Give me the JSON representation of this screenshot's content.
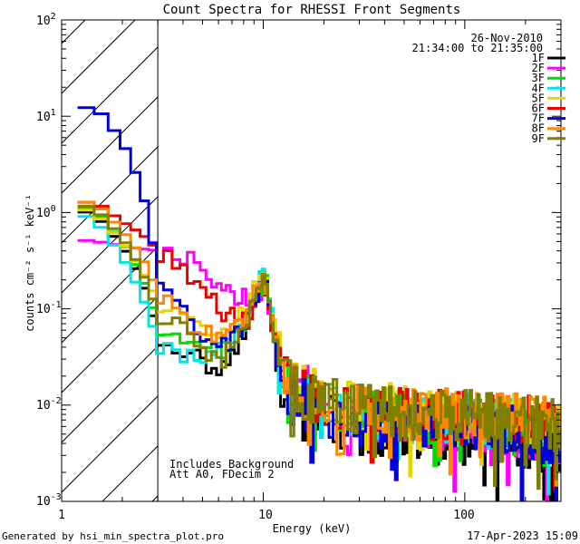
{
  "chart_data": {
    "type": "line",
    "title": "Count Spectra for RHESSI Front Segments",
    "xlabel": "Energy (keV)",
    "ylabel": "counts cm⁻² s⁻¹ keV⁻¹",
    "xscale": "log",
    "yscale": "log",
    "xlim": [
      1,
      300
    ],
    "ylim": [
      0.001,
      100
    ],
    "x_ticks": [
      {
        "value": 1,
        "label": "1"
      },
      {
        "value": 10,
        "label": "10"
      },
      {
        "value": 100,
        "label": "100"
      }
    ],
    "y_ticks": [
      {
        "value": 0.001,
        "base": "10",
        "exp": "-3"
      },
      {
        "value": 0.01,
        "base": "10",
        "exp": "-2"
      },
      {
        "value": 0.1,
        "base": "10",
        "exp": "-1"
      },
      {
        "value": 1,
        "base": "10",
        "exp": "0"
      },
      {
        "value": 10,
        "base": "10",
        "exp": "1"
      },
      {
        "value": 100,
        "base": "10",
        "exp": "2"
      }
    ],
    "hatched_region": {
      "from": 1,
      "to": 3
    },
    "date": "26-Nov-2010",
    "time_range": "21:34:00 to 21:35:00",
    "annotations": [
      "Includes Background",
      "Att A0, FDecim 2"
    ],
    "anchor_energies": [
      1.2,
      1.5,
      2,
      2.5,
      3,
      4,
      5,
      6,
      8,
      9,
      10,
      10.5,
      11,
      12,
      13,
      15,
      20,
      30,
      50,
      100,
      200,
      300
    ],
    "series": [
      {
        "name": "1F",
        "color": "#000000",
        "values": [
          1.1,
          0.9,
          0.45,
          0.2,
          0.055,
          0.04,
          0.03,
          0.022,
          0.05,
          0.12,
          0.2,
          0.18,
          0.07,
          0.02,
          0.01,
          0.008,
          0.009,
          0.005,
          0.005,
          0.005,
          0.004,
          0.0035
        ]
      },
      {
        "name": "2F",
        "color": "#ff00ff",
        "values": [
          0.52,
          0.5,
          0.45,
          0.42,
          0.4,
          0.35,
          0.25,
          0.18,
          0.13,
          0.13,
          0.15,
          0.14,
          0.07,
          0.035,
          0.02,
          0.015,
          0.012,
          0.008,
          0.007,
          0.006,
          0.005,
          0.0045
        ]
      },
      {
        "name": "3F",
        "color": "#00dd00",
        "values": [
          1.2,
          1.0,
          0.5,
          0.22,
          0.07,
          0.05,
          0.04,
          0.035,
          0.06,
          0.12,
          0.2,
          0.17,
          0.08,
          0.025,
          0.015,
          0.011,
          0.01,
          0.008,
          0.007,
          0.007,
          0.006,
          0.005
        ]
      },
      {
        "name": "4F",
        "color": "#00e5e5",
        "values": [
          1.0,
          0.8,
          0.35,
          0.14,
          0.045,
          0.03,
          0.028,
          0.035,
          0.07,
          0.14,
          0.22,
          0.2,
          0.09,
          0.025,
          0.015,
          0.011,
          0.01,
          0.008,
          0.007,
          0.007,
          0.006,
          0.005
        ]
      },
      {
        "name": "5F",
        "color": "#e5d500",
        "values": [
          1.15,
          0.95,
          0.5,
          0.25,
          0.12,
          0.09,
          0.07,
          0.06,
          0.09,
          0.15,
          0.2,
          0.17,
          0.09,
          0.035,
          0.02,
          0.015,
          0.013,
          0.01,
          0.009,
          0.008,
          0.007,
          0.006
        ]
      },
      {
        "name": "6F",
        "color": "#ee0000",
        "values": [
          1.3,
          1.25,
          0.8,
          0.6,
          0.4,
          0.28,
          0.18,
          0.1,
          0.07,
          0.1,
          0.18,
          0.15,
          0.07,
          0.028,
          0.018,
          0.013,
          0.011,
          0.009,
          0.008,
          0.008,
          0.007,
          0.006
        ]
      },
      {
        "name": "7F",
        "color": "#0000dd",
        "values": [
          12.5,
          12.0,
          5.5,
          1.8,
          0.25,
          0.1,
          0.05,
          0.04,
          0.06,
          0.13,
          0.2,
          0.17,
          0.07,
          0.022,
          0.012,
          0.01,
          0.009,
          0.007,
          0.006,
          0.006,
          0.005,
          0.004
        ]
      },
      {
        "name": "8F",
        "color": "#ff8800",
        "values": [
          1.35,
          1.2,
          0.65,
          0.35,
          0.15,
          0.08,
          0.06,
          0.05,
          0.08,
          0.15,
          0.2,
          0.17,
          0.08,
          0.03,
          0.018,
          0.014,
          0.012,
          0.009,
          0.008,
          0.008,
          0.007,
          0.006
        ]
      },
      {
        "name": "9F",
        "color": "#808000",
        "values": [
          1.25,
          1.05,
          0.55,
          0.25,
          0.09,
          0.06,
          0.045,
          0.025,
          0.06,
          0.13,
          0.2,
          0.17,
          0.08,
          0.03,
          0.017,
          0.013,
          0.011,
          0.009,
          0.008,
          0.008,
          0.007,
          0.006
        ]
      }
    ]
  },
  "footer": {
    "generated_by": "Generated by hsi_min_spectra_plot.pro",
    "timestamp": "17-Apr-2023 15:09"
  }
}
